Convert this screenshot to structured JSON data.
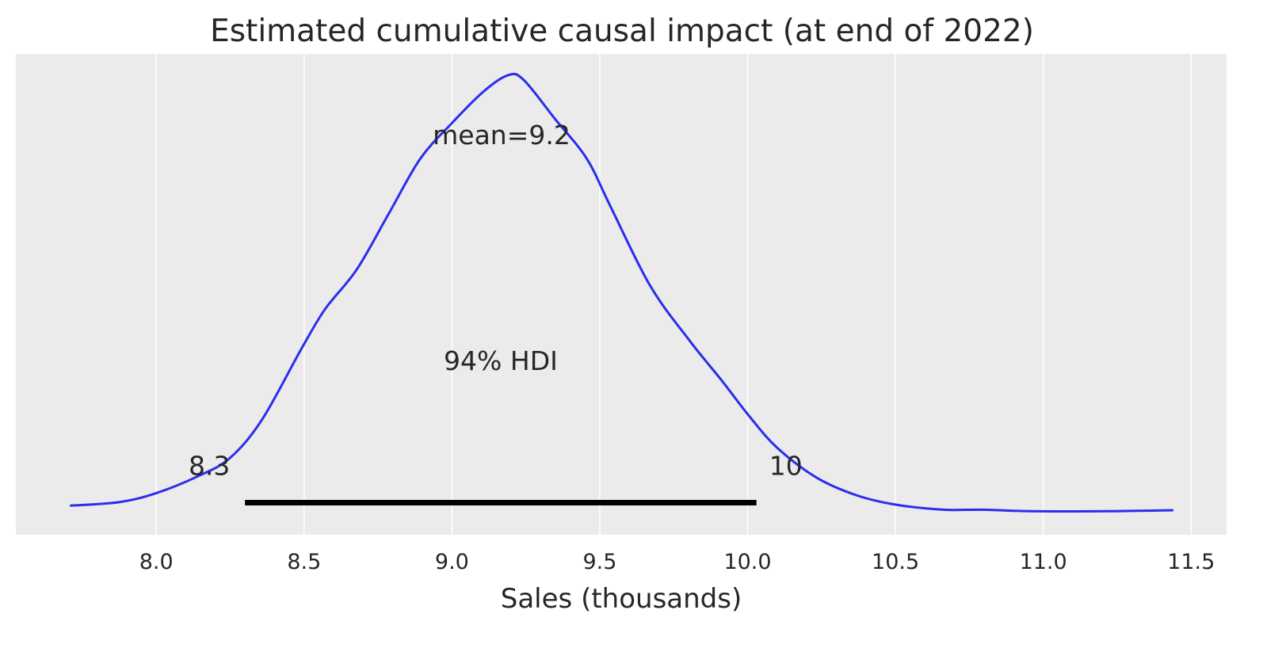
{
  "chart_data": {
    "type": "line",
    "title": "Estimated cumulative causal impact (at end of 2022)",
    "xlabel": "Sales (thousands)",
    "ylabel": "",
    "xlim": [
      7.525,
      11.62
    ],
    "ylim": [
      -0.044,
      0.915
    ],
    "grid": "vertical",
    "background": "#ebebeb",
    "x_ticks": [
      8.0,
      8.5,
      9.0,
      9.5,
      10.0,
      10.5,
      11.0,
      11.5
    ],
    "x_tick_labels": [
      "8.0",
      "8.5",
      "9.0",
      "9.5",
      "10.0",
      "10.5",
      "11.0",
      "11.5"
    ],
    "y_axis_visible": false,
    "series": [
      {
        "color": "#2a2eec",
        "x": [
          7.708,
          7.874,
          8.0,
          8.142,
          8.249,
          8.357,
          8.491,
          8.571,
          8.678,
          8.786,
          8.893,
          9.0,
          9.107,
          9.188,
          9.241,
          9.349,
          9.456,
          9.536,
          9.67,
          9.804,
          9.912,
          10.005,
          10.099,
          10.233,
          10.367,
          10.501,
          10.662,
          10.796,
          10.957,
          11.225,
          11.44
        ],
        "y": [
          0.014,
          0.021,
          0.039,
          0.073,
          0.109,
          0.185,
          0.327,
          0.406,
          0.485,
          0.596,
          0.706,
          0.777,
          0.84,
          0.872,
          0.864,
          0.785,
          0.706,
          0.611,
          0.453,
          0.343,
          0.264,
          0.193,
          0.13,
          0.07,
          0.035,
          0.016,
          0.006,
          0.006,
          0.003,
          0.003,
          0.005
        ]
      }
    ],
    "mean": 9.2,
    "mean_label": "mean=9.2",
    "hdi": {
      "low": 8.3,
      "high": 10.03,
      "low_label": "8.3",
      "high_label": "10",
      "label": "94% HDI",
      "color": "#000000"
    }
  }
}
